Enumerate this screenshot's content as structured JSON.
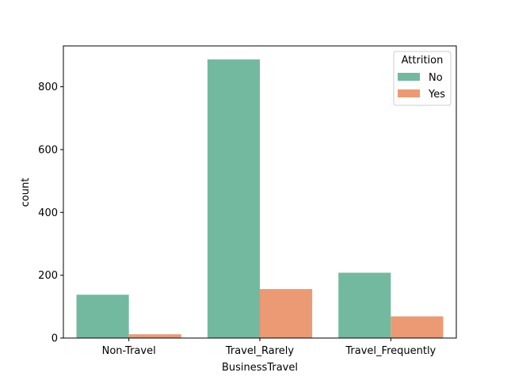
{
  "chart_data": {
    "type": "bar",
    "title": "",
    "xlabel": "BusinessTravel",
    "ylabel": "count",
    "categories": [
      "Non-Travel",
      "Travel_Rarely",
      "Travel_Frequently"
    ],
    "series": [
      {
        "name": "No",
        "values": [
          138,
          887,
          208
        ],
        "color": "#73b9a0"
      },
      {
        "name": "Yes",
        "values": [
          12,
          156,
          69
        ],
        "color": "#eb9a73"
      }
    ],
    "ylim": [
      0,
      930
    ],
    "yticks": [
      0,
      200,
      400,
      600,
      800
    ],
    "grid": false,
    "legend": {
      "title": "Attrition",
      "placement": "top-right"
    }
  }
}
